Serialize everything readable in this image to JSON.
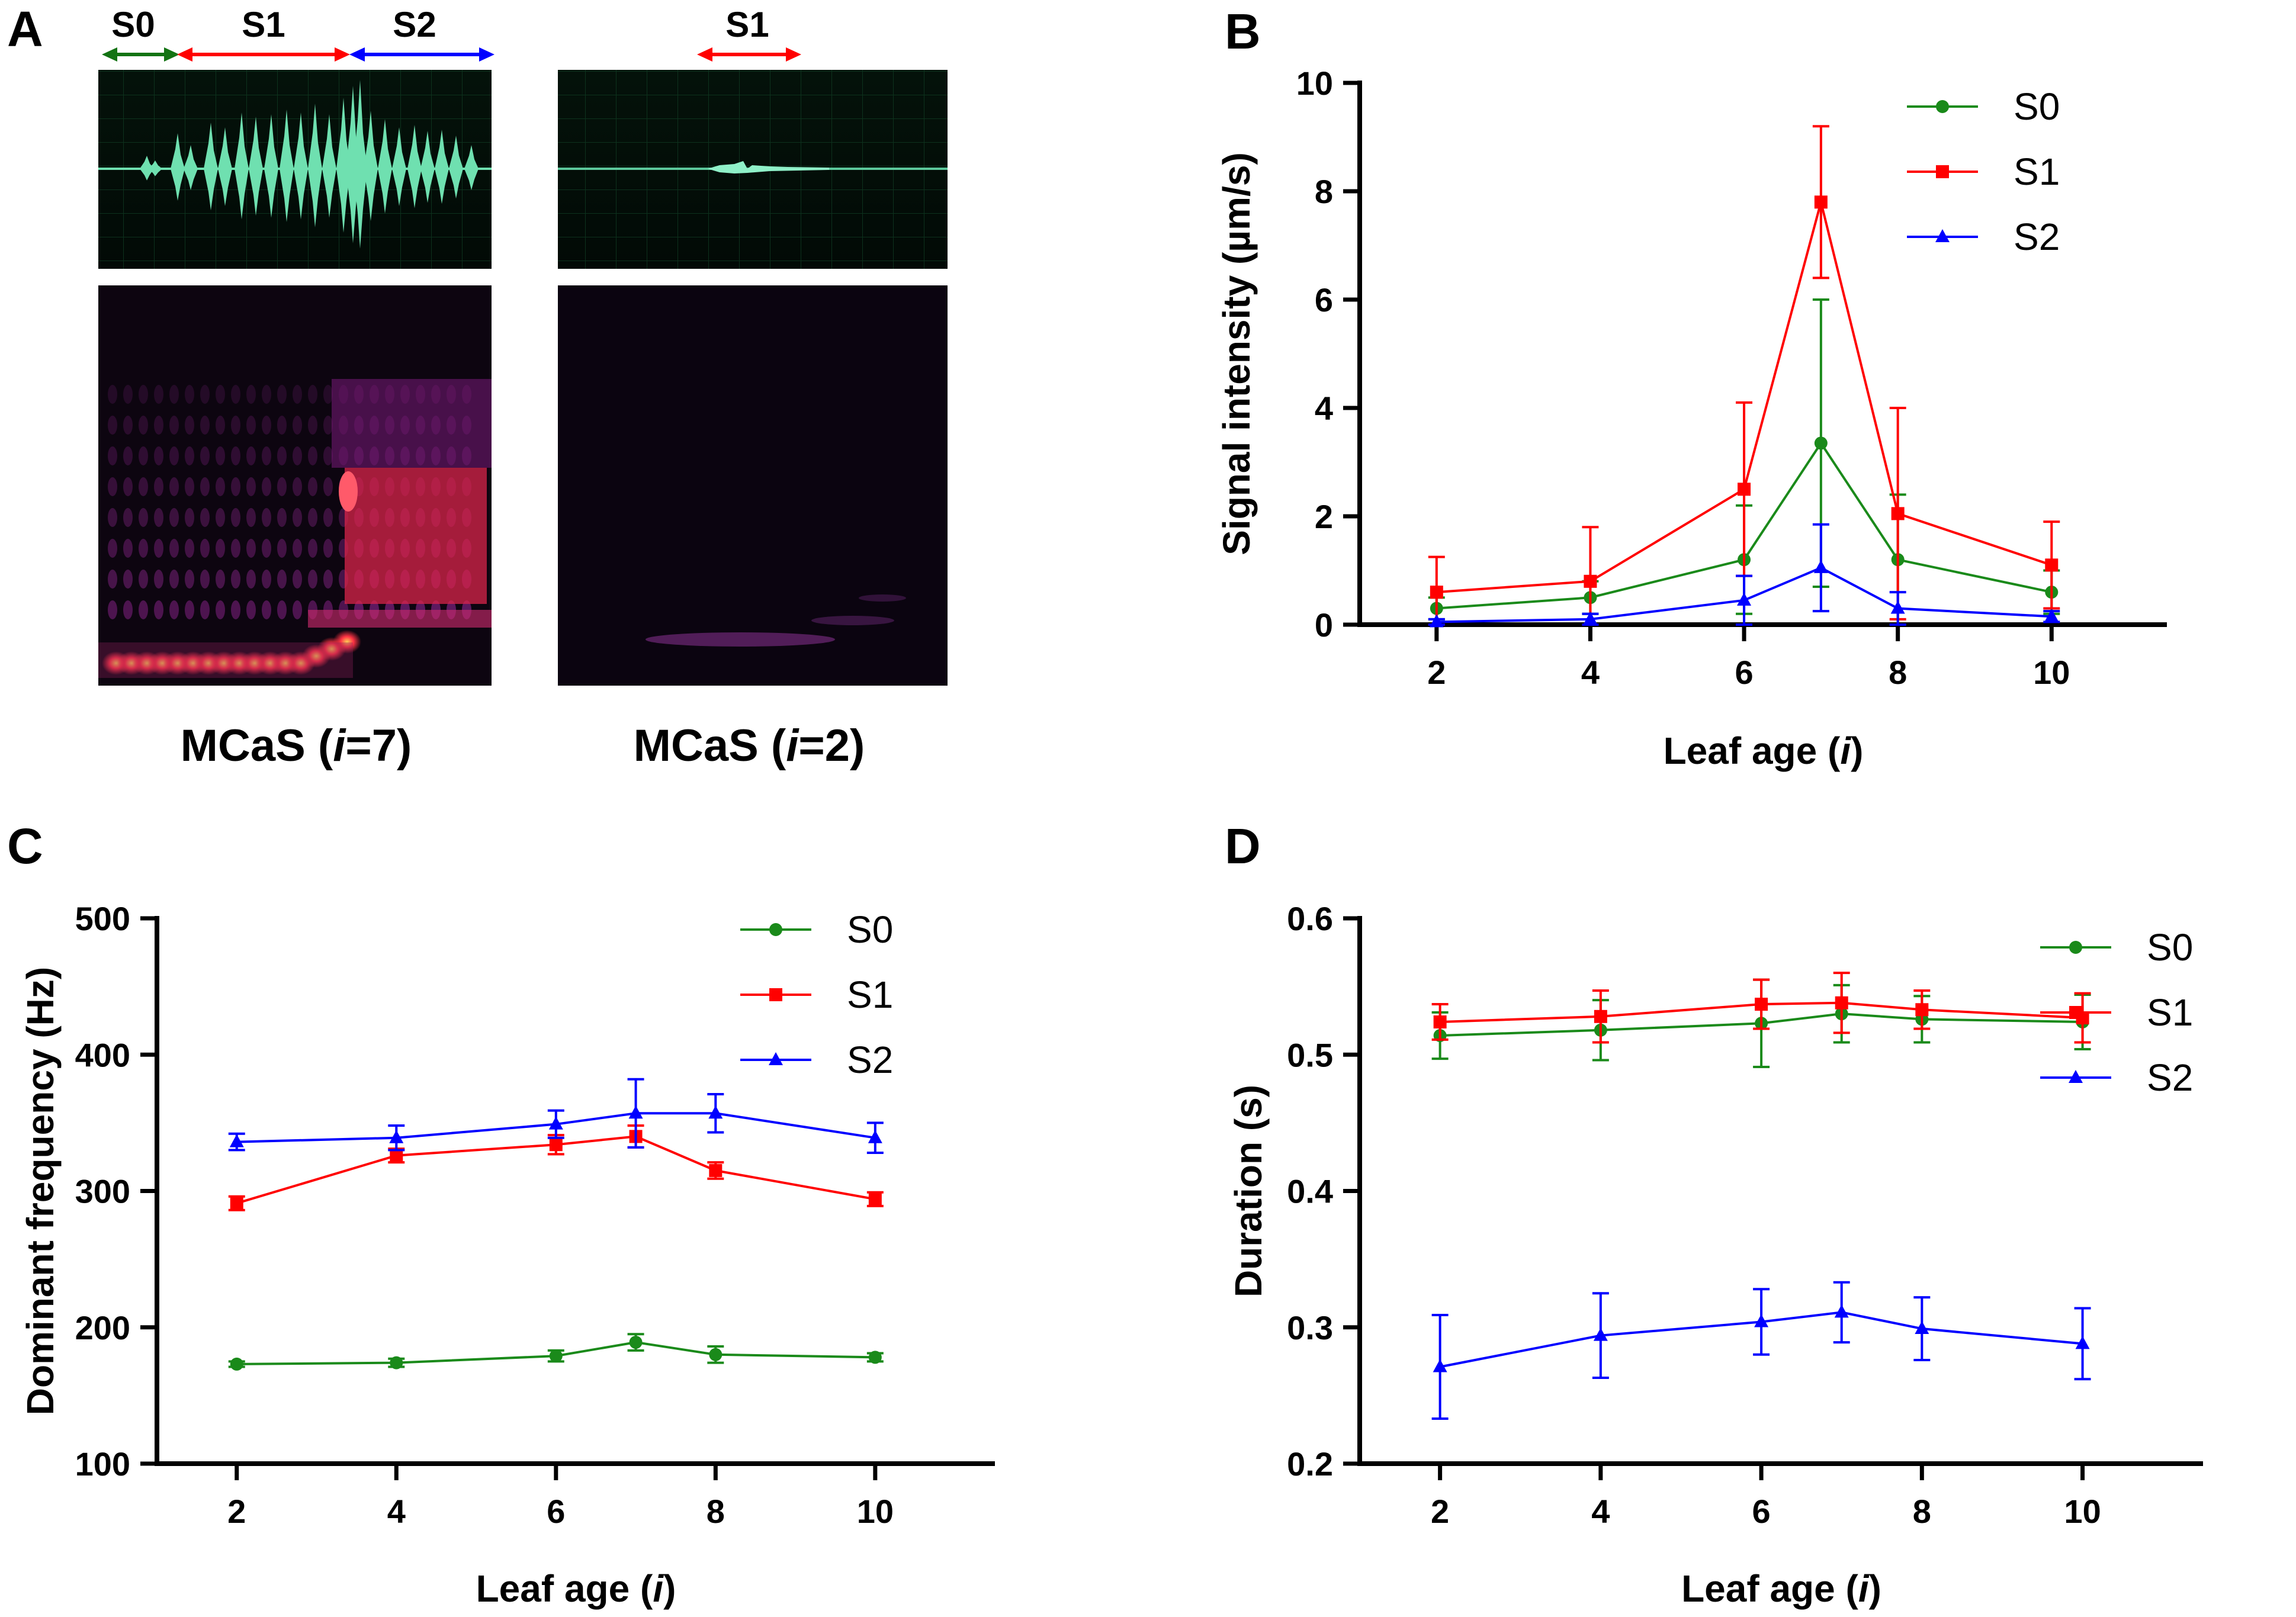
{
  "colors": {
    "S0": "#1a8a1a",
    "S1": "#ff0000",
    "S2": "#0000ff",
    "S0_arrow": "#137313",
    "wave": "#6fe0b0"
  },
  "panel_a": {
    "letter": "A",
    "left_segments": [
      "S0",
      "S1",
      "S2"
    ],
    "right_segments": [
      "S1"
    ],
    "caption_left": {
      "pre": "MCaS (",
      "i": "i",
      "post": "=7)"
    },
    "caption_right": {
      "pre": "MCaS (",
      "i": "i",
      "post": "=2)"
    }
  },
  "chart_data": [
    {
      "id": "B",
      "type": "line",
      "letter": "B",
      "ylabel": "Signal intensity (µm/s)",
      "xlabel": {
        "text": "Leaf age (",
        "italic": "i",
        "close": ")"
      },
      "xlim": [
        1,
        11.5
      ],
      "ylim": [
        0,
        10
      ],
      "xticks": [
        2,
        4,
        6,
        8,
        10
      ],
      "yticks": [
        0,
        2,
        4,
        6,
        8,
        10
      ],
      "x": [
        2,
        4,
        6,
        7,
        8,
        10
      ],
      "series": [
        {
          "name": "S0",
          "marker": "circle",
          "values": [
            0.3,
            0.5,
            1.2,
            3.35,
            1.2,
            0.6
          ],
          "err": [
            0.2,
            0.3,
            1.0,
            2.65,
            1.2,
            0.4
          ]
        },
        {
          "name": "S1",
          "marker": "square",
          "values": [
            0.6,
            0.8,
            2.5,
            7.8,
            2.05,
            1.1
          ],
          "err": [
            0.65,
            1.0,
            1.6,
            1.4,
            1.95,
            0.8
          ]
        },
        {
          "name": "S2",
          "marker": "triangle",
          "values": [
            0.05,
            0.1,
            0.45,
            1.05,
            0.3,
            0.15
          ],
          "err": [
            0.05,
            0.1,
            0.45,
            0.8,
            0.3,
            0.1
          ]
        }
      ]
    },
    {
      "id": "C",
      "type": "line",
      "letter": "C",
      "ylabel": "Dominant frequency (Hz)",
      "xlabel": {
        "text": "Leaf age (",
        "italic": "i",
        "close": ")"
      },
      "xlim": [
        1,
        11.5
      ],
      "ylim": [
        100,
        500
      ],
      "xticks": [
        2,
        4,
        6,
        8,
        10
      ],
      "yticks": [
        100,
        200,
        300,
        400,
        500
      ],
      "x": [
        2,
        4,
        6,
        7,
        8,
        10
      ],
      "series": [
        {
          "name": "S0",
          "marker": "circle",
          "values": [
            173,
            174,
            179,
            189,
            180,
            178
          ],
          "err": [
            2,
            3,
            4,
            6,
            6,
            3
          ]
        },
        {
          "name": "S1",
          "marker": "square",
          "values": [
            291,
            326,
            334,
            340,
            315,
            294
          ],
          "err": [
            5,
            5,
            7,
            8,
            6,
            5
          ]
        },
        {
          "name": "S2",
          "marker": "triangle",
          "values": [
            336,
            339,
            349,
            357,
            357,
            339
          ],
          "err": [
            6,
            9,
            10,
            25,
            14,
            11
          ]
        }
      ]
    },
    {
      "id": "D",
      "type": "line",
      "letter": "D",
      "ylabel": "Duration (s)",
      "xlabel": {
        "text": "Leaf age (",
        "italic": "i",
        "close": ")"
      },
      "xlim": [
        1,
        11.5
      ],
      "ylim": [
        0.2,
        0.6
      ],
      "xticks": [
        2,
        4,
        6,
        8,
        10
      ],
      "yticks": [
        0.2,
        0.3,
        0.4,
        0.5,
        0.6
      ],
      "x": [
        2,
        4,
        6,
        7,
        8,
        10
      ],
      "series": [
        {
          "name": "S0",
          "marker": "circle",
          "values": [
            0.514,
            0.518,
            0.523,
            0.53,
            0.526,
            0.524
          ],
          "err": [
            0.017,
            0.022,
            0.032,
            0.021,
            0.017,
            0.02
          ]
        },
        {
          "name": "S1",
          "marker": "square",
          "values": [
            0.524,
            0.528,
            0.537,
            0.538,
            0.533,
            0.527
          ],
          "err": [
            0.013,
            0.019,
            0.018,
            0.022,
            0.014,
            0.018
          ]
        },
        {
          "name": "S2",
          "marker": "triangle",
          "values": [
            0.271,
            0.294,
            0.304,
            0.311,
            0.299,
            0.288
          ],
          "err": [
            0.038,
            0.031,
            0.024,
            0.022,
            0.023,
            0.026
          ]
        }
      ]
    }
  ]
}
